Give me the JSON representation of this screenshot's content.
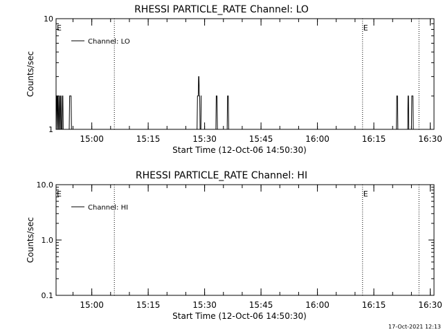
{
  "footer": {
    "timestamp": "17-Oct-2021 12:13"
  },
  "chart_data": [
    {
      "type": "line",
      "title": "RHESSI PARTICLE_RATE Channel: LO",
      "xlabel": "Start Time (12-Oct-06 14:50:30)",
      "ylabel": "Counts/sec",
      "yscale": "log",
      "ylim": [
        1,
        10
      ],
      "y_ticks": [
        "1",
        "10"
      ],
      "xlim": [
        "14:50:30",
        "16:31:00"
      ],
      "x_ticks": [
        "15:00",
        "15:15",
        "15:30",
        "15:45",
        "16:00",
        "16:15",
        "16:30"
      ],
      "legend": {
        "position": "top-left",
        "entries": [
          "Channel: LO"
        ]
      },
      "markers": [
        {
          "time": "15:06:00",
          "label": ""
        },
        {
          "time": "16:12:00",
          "label": "E"
        },
        {
          "time": "16:27:00",
          "label": ""
        }
      ],
      "corner_label": "E",
      "series": [
        {
          "name": "Channel: LO",
          "x": [
            "14:50:30",
            "14:50:36",
            "14:50:42",
            "14:50:48",
            "14:50:54",
            "14:51:00",
            "14:51:06",
            "14:51:12",
            "14:51:18",
            "14:51:24",
            "14:51:30",
            "14:51:36",
            "14:51:42",
            "14:51:48",
            "14:51:54",
            "14:52:00",
            "14:52:06",
            "14:52:12",
            "14:52:18",
            "14:52:24",
            "14:54:00",
            "14:54:06",
            "14:54:12",
            "14:54:18",
            "14:54:24",
            "14:54:30",
            "14:54:36",
            "15:28:00",
            "15:28:06",
            "15:28:12",
            "15:28:18",
            "15:28:24",
            "15:28:30",
            "15:28:36",
            "15:28:42",
            "15:28:48",
            "15:28:54",
            "15:29:00",
            "15:29:06",
            "15:29:12",
            "15:33:00",
            "15:33:06",
            "15:33:12",
            "15:33:18",
            "15:33:24",
            "15:36:00",
            "15:36:06",
            "15:36:12",
            "15:36:18",
            "15:36:24",
            "16:21:00",
            "16:21:06",
            "16:21:12",
            "16:21:18",
            "16:21:24",
            "16:24:00",
            "16:24:06",
            "16:24:12",
            "16:24:18",
            "16:24:24",
            "16:25:00",
            "16:25:06",
            "16:25:12",
            "16:25:18",
            "16:25:24",
            "16:25:30"
          ],
          "y": [
            1,
            2,
            2,
            1,
            2,
            2,
            1,
            1,
            2,
            2,
            1,
            1,
            2,
            2,
            1,
            1,
            1,
            2,
            2,
            1,
            1,
            2,
            2,
            2,
            2,
            2,
            1,
            1,
            2,
            2,
            2,
            3,
            3,
            2,
            2,
            1,
            1,
            1,
            2,
            2,
            1,
            2,
            2,
            2,
            1,
            1,
            2,
            2,
            2,
            1,
            1,
            2,
            2,
            2,
            1,
            1,
            2,
            2,
            1,
            1,
            1,
            2,
            2,
            2,
            2,
            1
          ]
        }
      ]
    },
    {
      "type": "line",
      "title": "RHESSI PARTICLE_RATE Channel: HI",
      "xlabel": "Start Time (12-Oct-06 14:50:30)",
      "ylabel": "Counts/sec",
      "yscale": "log",
      "ylim": [
        0.1,
        10
      ],
      "y_ticks": [
        "0.1",
        "1.0",
        "10.0"
      ],
      "xlim": [
        "14:50:30",
        "16:31:00"
      ],
      "x_ticks": [
        "15:00",
        "15:15",
        "15:30",
        "15:45",
        "16:00",
        "16:15",
        "16:30"
      ],
      "legend": {
        "position": "top-left",
        "entries": [
          "Channel: HI"
        ]
      },
      "markers": [
        {
          "time": "15:06:00",
          "label": ""
        },
        {
          "time": "16:12:00",
          "label": "E"
        },
        {
          "time": "16:27:00",
          "label": ""
        }
      ],
      "corner_label": "E",
      "series": [
        {
          "name": "Channel: HI",
          "x": [],
          "y": []
        }
      ]
    }
  ]
}
